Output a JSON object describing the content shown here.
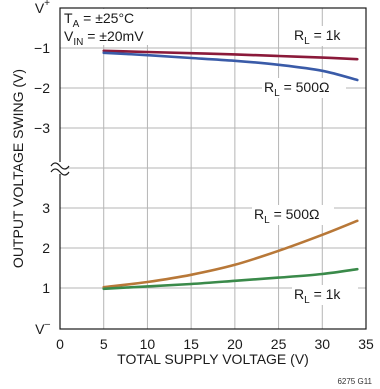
{
  "chart_data": {
    "type": "line",
    "xlabel": "TOTAL SUPPLY VOLTAGE (V)",
    "ylabel": "OUTPUT VOLTAGE SWING (V)",
    "xlim": [
      0,
      35
    ],
    "x_ticks": [
      "0",
      "5",
      "10",
      "15",
      "20",
      "25",
      "30",
      "35"
    ],
    "y_ticks_top": [
      {
        "sup": "+",
        "base": "V"
      },
      {
        "text": "−1"
      },
      {
        "text": "−2"
      },
      {
        "text": "−3"
      }
    ],
    "y_ticks_bottom": [
      {
        "text": "3"
      },
      {
        "text": "2"
      },
      {
        "text": "1"
      },
      {
        "sup": "–",
        "base": "V"
      }
    ],
    "axis_break": true,
    "grid": true,
    "conditions": [
      {
        "base": "T",
        "sub": "A",
        "rest": " = ±25°C"
      },
      {
        "base": "V",
        "sub": "IN",
        "rest": " = ±20mV"
      }
    ],
    "figure_id": "6275 G11",
    "series": [
      {
        "label": {
          "base": "R",
          "sub": "L",
          "rest": " = 1k"
        },
        "panel": "top",
        "color": "#8b1a3a",
        "x": [
          5,
          10,
          15,
          20,
          25,
          30,
          34
        ],
        "y": [
          -1.07,
          -1.1,
          -1.13,
          -1.16,
          -1.2,
          -1.24,
          -1.28
        ]
      },
      {
        "label": {
          "base": "R",
          "sub": "L",
          "rest": " = 500Ω"
        },
        "panel": "top",
        "color": "#3a5ba8",
        "x": [
          5,
          10,
          15,
          20,
          25,
          30,
          34
        ],
        "y": [
          -1.12,
          -1.18,
          -1.25,
          -1.32,
          -1.42,
          -1.57,
          -1.8
        ]
      },
      {
        "label": {
          "base": "R",
          "sub": "L",
          "rest": " = 500Ω"
        },
        "panel": "bottom",
        "color": "#b87838",
        "x": [
          5,
          10,
          15,
          20,
          25,
          30,
          34
        ],
        "y": [
          1.02,
          1.15,
          1.33,
          1.58,
          1.93,
          2.33,
          2.68
        ]
      },
      {
        "label": {
          "base": "R",
          "sub": "L",
          "rest": " = 1k"
        },
        "panel": "bottom",
        "color": "#3a8a4a",
        "x": [
          5,
          10,
          15,
          20,
          25,
          30,
          34
        ],
        "y": [
          0.98,
          1.04,
          1.1,
          1.18,
          1.26,
          1.35,
          1.47
        ]
      }
    ]
  }
}
